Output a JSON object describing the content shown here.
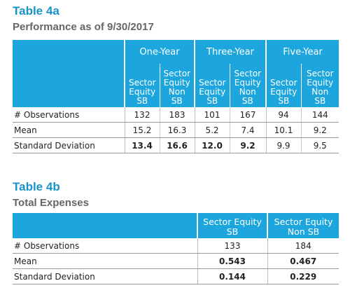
{
  "table4a": {
    "title": "Table 4a",
    "subtitle": "Performance as of 9/30/2017",
    "groups": [
      "One-Year",
      "Three-Year",
      "Five-Year"
    ],
    "sub_headers": [
      [
        "Sector",
        "Equity",
        "SB"
      ],
      [
        "Sector",
        "Equity",
        "Non",
        "SB"
      ],
      [
        "Sector",
        "Equity",
        "SB"
      ],
      [
        "Sector",
        "Equity",
        "Non",
        "SB"
      ],
      [
        "Sector",
        "Equity",
        "SB"
      ],
      [
        "Sector",
        "Equity",
        "Non",
        "SB"
      ]
    ],
    "rows": [
      {
        "label": "# Observations",
        "values": [
          "132",
          "183",
          "101",
          "167",
          "94",
          "144"
        ]
      },
      {
        "label": "Mean",
        "values": [
          "15.2",
          "16.3",
          "5.2",
          "7.4",
          "10.1",
          "9.2"
        ]
      },
      {
        "label": "Standard Deviation",
        "values": [
          "13.4",
          "16.6",
          "12.0",
          "9.2",
          "9.9",
          "9.5"
        ]
      }
    ]
  },
  "table4b": {
    "title": "Table 4b",
    "subtitle": "Total Expenses",
    "headers": [
      [
        "Sector Equity",
        "SB"
      ],
      [
        "Sector Equity",
        "Non SB"
      ]
    ],
    "rows": [
      {
        "label": "# Observations",
        "values": [
          "133",
          "184"
        ]
      },
      {
        "label": "Mean",
        "values": [
          "0.543",
          "0.467"
        ]
      },
      {
        "label": "Standard Deviation",
        "values": [
          "0.144",
          "0.229"
        ]
      }
    ]
  }
}
